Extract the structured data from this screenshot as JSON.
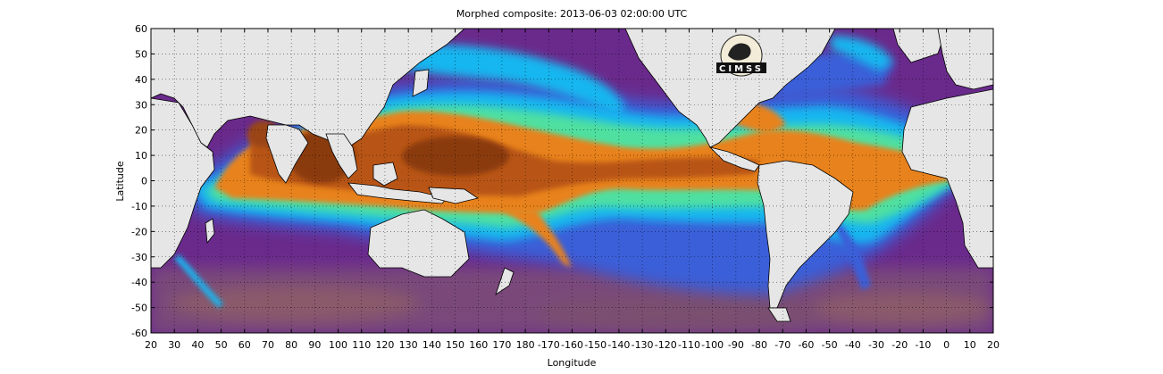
{
  "title": "Morphed composite: 2013-06-03 02:00:00 UTC",
  "xlabel": "Longitude",
  "ylabel": "Latitude",
  "logo_text": "CIMSS",
  "colors": {
    "land": "#e6e6e6",
    "ocean_dry": "#6a2a8c",
    "ocean_dry_dark": "#4a1f66",
    "moist_low": "#3a5fd8",
    "moist_mid": "#19b6f0",
    "moist_green": "#4fe0a0",
    "moist_orange": "#e8821c",
    "moist_high": "#b85512",
    "moist_peak": "#8a3a10"
  },
  "chart_data": {
    "type": "heatmap",
    "title": "Morphed composite: 2013-06-03 02:00:00 UTC",
    "xlabel": "Longitude",
    "ylabel": "Latitude",
    "xlim": [
      20,
      380
    ],
    "ylim": [
      -60,
      60
    ],
    "grid": true,
    "xticks": [
      "20",
      "30",
      "40",
      "50",
      "60",
      "70",
      "80",
      "90",
      "100",
      "110",
      "120",
      "130",
      "140",
      "150",
      "160",
      "170",
      "180",
      "-170",
      "-160",
      "-150",
      "-140",
      "-130",
      "-120",
      "-110",
      "-100",
      "-90",
      "-80",
      "-70",
      "-60",
      "-50",
      "-40",
      "-30",
      "-20",
      "-10",
      "0",
      "10",
      "20"
    ],
    "yticks": [
      "60",
      "50",
      "40",
      "30",
      "20",
      "10",
      "0",
      "-10",
      "-20",
      "-30",
      "-40",
      "-50",
      "-60"
    ]
  }
}
